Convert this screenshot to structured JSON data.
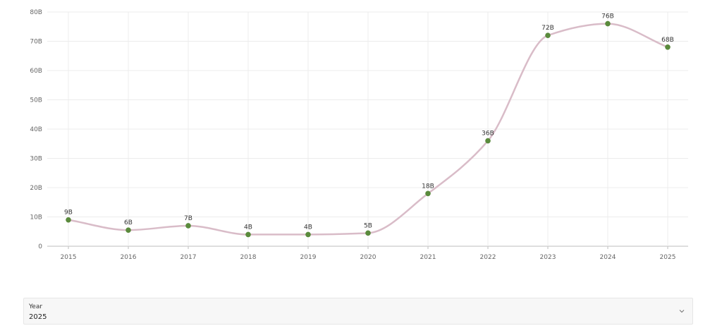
{
  "chart_data": {
    "type": "line",
    "x": [
      "2015",
      "2016",
      "2017",
      "2018",
      "2019",
      "2020",
      "2021",
      "2022",
      "2023",
      "2024",
      "2025"
    ],
    "series": [
      {
        "values": [
          9,
          5.5,
          7,
          4,
          4,
          4.5,
          18,
          36,
          72,
          76,
          68
        ],
        "labels": [
          "9B",
          "6B",
          "7B",
          "4B",
          "4B",
          "5B",
          "18B",
          "36B",
          "72B",
          "76B",
          "68B"
        ]
      }
    ],
    "y_ticks": [
      0,
      10,
      20,
      30,
      40,
      50,
      60,
      70,
      80
    ],
    "y_tick_labels": [
      "0",
      "10B",
      "20B",
      "30B",
      "40B",
      "50B",
      "60B",
      "70B",
      "80B"
    ],
    "ylim": [
      0,
      80
    ],
    "grid": true,
    "colors": {
      "line": "#d9bcc8",
      "marker": "#5a8a3c",
      "grid": "#ececec",
      "axis": "#bdbdbd"
    }
  },
  "filter": {
    "label": "Year",
    "value": "2025",
    "icon": "chevron-down-icon"
  }
}
